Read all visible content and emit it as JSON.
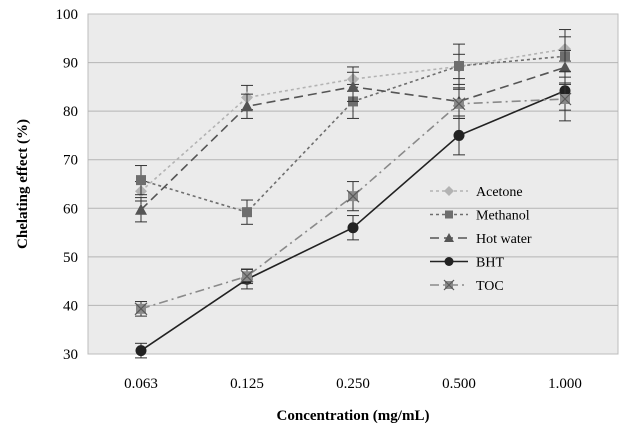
{
  "chart_data": {
    "type": "line",
    "title": "",
    "xlabel": "Concentration (mg/mL)",
    "ylabel": "Chelating effect (%)",
    "categories": [
      "0.063",
      "0.125",
      "0.250",
      "0.500",
      "1.000"
    ],
    "ylim": [
      30,
      100
    ],
    "yticks": [
      "30",
      "40",
      "50",
      "60",
      "70",
      "80",
      "90",
      "100"
    ],
    "grid": "horizontal",
    "legend_position": "right",
    "series": [
      {
        "name": "Acetone",
        "values": [
          63.5,
          82.8,
          86.6,
          89.2,
          92.8
        ],
        "errors": [
          2.0,
          2.5,
          2.5,
          2.5,
          2.5
        ],
        "color": "#b3b3b3",
        "dash": "3,3",
        "marker": "diamond"
      },
      {
        "name": "Methanol",
        "values": [
          65.8,
          59.2,
          82.0,
          89.3,
          91.3
        ],
        "errors": [
          3.0,
          2.5,
          3.5,
          4.5,
          5.5
        ],
        "color": "#6e6e6e",
        "dash": "3,3",
        "marker": "square"
      },
      {
        "name": "Hot water",
        "values": [
          59.7,
          81.0,
          85.0,
          82.0,
          89.0
        ],
        "errors": [
          2.5,
          2.5,
          3.0,
          3.5,
          3.5
        ],
        "color": "#555555",
        "dash": "9,5",
        "marker": "triangle"
      },
      {
        "name": "BHT",
        "values": [
          30.7,
          45.4,
          56.0,
          75.0,
          84.2
        ],
        "errors": [
          1.5,
          2.0,
          2.5,
          4.0,
          4.0
        ],
        "color": "#222222",
        "dash": "",
        "marker": "circle"
      },
      {
        "name": "TOC",
        "values": [
          39.3,
          46.0,
          62.5,
          81.5,
          82.5
        ],
        "errors": [
          1.5,
          1.5,
          3.0,
          3.0,
          4.5
        ],
        "color": "#8a8a8a",
        "dash": "9,4,2,4",
        "marker": "asterisk"
      }
    ]
  }
}
